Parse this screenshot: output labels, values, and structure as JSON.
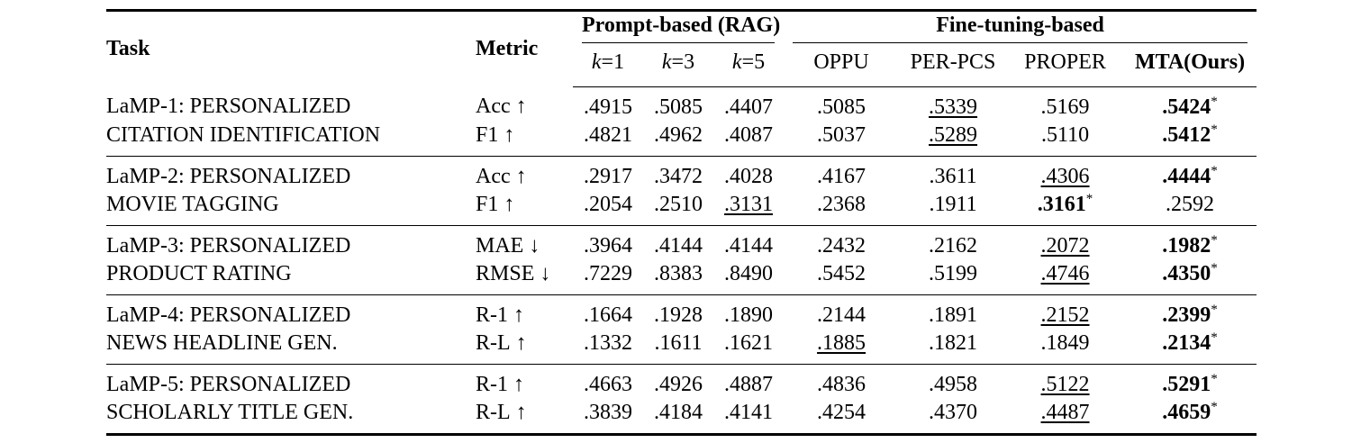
{
  "table": {
    "corner": {
      "task_label": "Task",
      "metric_label": "Metric"
    },
    "column_groups": [
      {
        "label": "Prompt-based (RAG)",
        "columns": [
          {
            "key": "k1",
            "italic": "k",
            "text": "=1"
          },
          {
            "key": "k3",
            "italic": "k",
            "text": "=3"
          },
          {
            "key": "k5",
            "italic": "k",
            "text": "=5"
          }
        ]
      },
      {
        "label": "Fine-tuning-based",
        "columns": [
          {
            "key": "oppu",
            "text": "OPPU"
          },
          {
            "key": "per-pcs",
            "text": "PER-PCS"
          },
          {
            "key": "proper",
            "text": "PROPER"
          },
          {
            "key": "mta-ours",
            "text": "MTA(Ours)",
            "bold": true
          }
        ]
      }
    ],
    "column_keys": [
      "k1",
      "k3",
      "k5",
      "oppu",
      "per-pcs",
      "proper",
      "mta-ours"
    ],
    "task_groups": [
      {
        "task_lines": [
          "LaMP-1: PERSONALIZED",
          "CITATION IDENTIFICATION"
        ],
        "rows": [
          {
            "metric": "Acc",
            "arrow": "↑",
            "values": [
              {
                "v": ".4915"
              },
              {
                "v": ".5085"
              },
              {
                "v": ".4407"
              },
              {
                "v": ".5085"
              },
              {
                "v": ".5339",
                "u": true
              },
              {
                "v": ".5169"
              },
              {
                "v": ".5424",
                "b": true,
                "star": "*"
              }
            ]
          },
          {
            "metric": "F1",
            "arrow": "↑",
            "values": [
              {
                "v": ".4821"
              },
              {
                "v": ".4962"
              },
              {
                "v": ".4087"
              },
              {
                "v": ".5037"
              },
              {
                "v": ".5289",
                "u": true
              },
              {
                "v": ".5110"
              },
              {
                "v": ".5412",
                "b": true,
                "star": "*"
              }
            ]
          }
        ]
      },
      {
        "task_lines": [
          "LaMP-2: PERSONALIZED",
          "MOVIE TAGGING"
        ],
        "rows": [
          {
            "metric": "Acc",
            "arrow": "↑",
            "values": [
              {
                "v": ".2917"
              },
              {
                "v": ".3472"
              },
              {
                "v": ".4028"
              },
              {
                "v": ".4167"
              },
              {
                "v": ".3611"
              },
              {
                "v": ".4306",
                "u": true
              },
              {
                "v": ".4444",
                "b": true,
                "star": "*"
              }
            ]
          },
          {
            "metric": "F1",
            "arrow": "↑",
            "values": [
              {
                "v": ".2054"
              },
              {
                "v": ".2510"
              },
              {
                "v": ".3131",
                "u": true
              },
              {
                "v": ".2368"
              },
              {
                "v": ".1911"
              },
              {
                "v": ".3161",
                "b": true,
                "star": "*"
              },
              {
                "v": ".2592"
              }
            ]
          }
        ]
      },
      {
        "task_lines": [
          "LaMP-3: PERSONALIZED",
          "PRODUCT RATING"
        ],
        "rows": [
          {
            "metric": "MAE",
            "arrow": "↓",
            "values": [
              {
                "v": ".3964"
              },
              {
                "v": ".4144"
              },
              {
                "v": ".4144"
              },
              {
                "v": ".2432"
              },
              {
                "v": ".2162"
              },
              {
                "v": ".2072",
                "u": true
              },
              {
                "v": ".1982",
                "b": true,
                "star": "*"
              }
            ]
          },
          {
            "metric": "RMSE",
            "arrow": "↓",
            "values": [
              {
                "v": ".7229"
              },
              {
                "v": ".8383"
              },
              {
                "v": ".8490"
              },
              {
                "v": ".5452"
              },
              {
                "v": ".5199"
              },
              {
                "v": ".4746",
                "u": true
              },
              {
                "v": ".4350",
                "b": true,
                "star": "*"
              }
            ]
          }
        ]
      },
      {
        "task_lines": [
          "LaMP-4: PERSONALIZED",
          "NEWS HEADLINE GEN."
        ],
        "rows": [
          {
            "metric": "R-1",
            "arrow": "↑",
            "values": [
              {
                "v": ".1664"
              },
              {
                "v": ".1928"
              },
              {
                "v": ".1890"
              },
              {
                "v": ".2144"
              },
              {
                "v": ".1891"
              },
              {
                "v": ".2152",
                "u": true
              },
              {
                "v": ".2399",
                "b": true,
                "star": "*"
              }
            ]
          },
          {
            "metric": "R-L",
            "arrow": "↑",
            "values": [
              {
                "v": ".1332"
              },
              {
                "v": ".1611"
              },
              {
                "v": ".1621"
              },
              {
                "v": ".1885",
                "u": true
              },
              {
                "v": ".1821"
              },
              {
                "v": ".1849"
              },
              {
                "v": ".2134",
                "b": true,
                "star": "*"
              }
            ]
          }
        ]
      },
      {
        "task_lines": [
          "LaMP-5: PERSONALIZED",
          "SCHOLARLY TITLE GEN."
        ],
        "rows": [
          {
            "metric": "R-1",
            "arrow": "↑",
            "values": [
              {
                "v": ".4663"
              },
              {
                "v": ".4926"
              },
              {
                "v": ".4887"
              },
              {
                "v": ".4836"
              },
              {
                "v": ".4958"
              },
              {
                "v": ".5122",
                "u": true
              },
              {
                "v": ".5291",
                "b": true,
                "star": "*"
              }
            ]
          },
          {
            "metric": "R-L",
            "arrow": "↑",
            "values": [
              {
                "v": ".3839"
              },
              {
                "v": ".4184"
              },
              {
                "v": ".4141"
              },
              {
                "v": ".4254"
              },
              {
                "v": ".4370"
              },
              {
                "v": ".4487",
                "u": true
              },
              {
                "v": ".4659",
                "b": true,
                "star": "*"
              }
            ]
          }
        ]
      }
    ]
  }
}
